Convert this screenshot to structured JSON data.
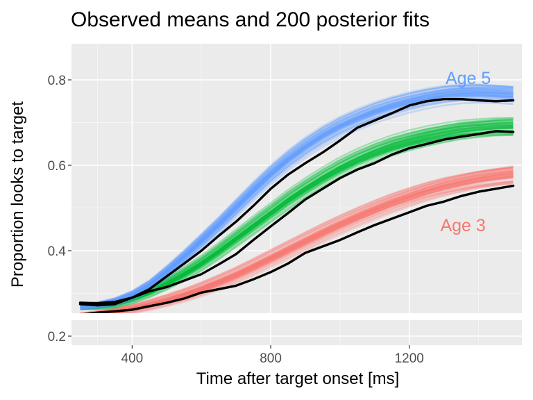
{
  "chart_data": {
    "type": "line",
    "title": "Observed means and 200 posterior fits",
    "xlabel": "Time after target onset [ms]",
    "ylabel": "Proportion looks to target",
    "xlim": [
      225,
      1525
    ],
    "ylim": [
      0.2,
      0.83
    ],
    "x_ticks": [
      400,
      800,
      1200
    ],
    "x_tick_labels": [
      "400",
      "800",
      "1200"
    ],
    "y_ticks": [
      0.2,
      0.4,
      0.6,
      0.8
    ],
    "y_tick_labels": [
      "0.2",
      "0.4",
      "0.6",
      "0.8"
    ],
    "y_axis_break": true,
    "grid": true,
    "posterior_fits_per_group": 200,
    "x": [
      250,
      300,
      350,
      400,
      450,
      500,
      550,
      600,
      650,
      700,
      750,
      800,
      850,
      900,
      950,
      1000,
      1050,
      1100,
      1150,
      1200,
      1250,
      1300,
      1350,
      1400,
      1450,
      1500
    ],
    "series": [
      {
        "name": "Age 5",
        "color": "#619CFF",
        "fit": [
          0.268,
          0.272,
          0.28,
          0.295,
          0.318,
          0.35,
          0.385,
          0.422,
          0.46,
          0.5,
          0.54,
          0.578,
          0.612,
          0.642,
          0.668,
          0.69,
          0.708,
          0.724,
          0.737,
          0.748,
          0.757,
          0.764,
          0.768,
          0.769,
          0.767,
          0.764
        ],
        "observed": [
          0.278,
          0.277,
          0.28,
          0.29,
          0.31,
          0.34,
          0.37,
          0.4,
          0.435,
          0.468,
          0.505,
          0.545,
          0.578,
          0.605,
          0.63,
          0.658,
          0.688,
          0.705,
          0.722,
          0.74,
          0.75,
          0.755,
          0.755,
          0.752,
          0.75,
          0.752
        ]
      },
      {
        "name": "",
        "color": "#00BA38",
        "fit": [
          0.268,
          0.27,
          0.275,
          0.287,
          0.303,
          0.323,
          0.345,
          0.37,
          0.398,
          0.428,
          0.458,
          0.488,
          0.518,
          0.545,
          0.57,
          0.593,
          0.613,
          0.63,
          0.645,
          0.657,
          0.667,
          0.675,
          0.682,
          0.686,
          0.689,
          0.69
        ],
        "observed": [
          0.275,
          0.272,
          0.275,
          0.29,
          0.305,
          0.315,
          0.33,
          0.345,
          0.368,
          0.392,
          0.425,
          0.457,
          0.488,
          0.52,
          0.545,
          0.57,
          0.59,
          0.605,
          0.625,
          0.64,
          0.65,
          0.66,
          0.667,
          0.673,
          0.68,
          0.678
        ]
      },
      {
        "name": "Age 3",
        "color": "#F8766D",
        "fit": [
          0.248,
          0.252,
          0.257,
          0.264,
          0.273,
          0.284,
          0.296,
          0.31,
          0.326,
          0.343,
          0.362,
          0.382,
          0.402,
          0.422,
          0.442,
          0.461,
          0.479,
          0.496,
          0.512,
          0.526,
          0.539,
          0.55,
          0.559,
          0.567,
          0.573,
          0.578
        ],
        "observed": [
          0.25,
          0.255,
          0.258,
          0.262,
          0.27,
          0.278,
          0.288,
          0.302,
          0.31,
          0.318,
          0.333,
          0.35,
          0.37,
          0.395,
          0.41,
          0.425,
          0.443,
          0.46,
          0.475,
          0.49,
          0.505,
          0.515,
          0.528,
          0.538,
          0.545,
          0.552
        ]
      }
    ],
    "annotations": [
      {
        "text": "Age 5",
        "color": "#619CFF",
        "x": 1370,
        "y": 0.805
      },
      {
        "text": "Age 3",
        "color": "#F8766D",
        "x": 1355,
        "y": 0.46
      }
    ]
  }
}
